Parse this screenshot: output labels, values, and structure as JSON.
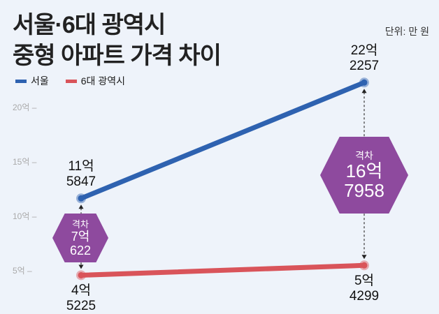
{
  "title": [
    "서울·6대 광역시",
    "중형 아파트 가격 차이"
  ],
  "unit": "단위: 만 원",
  "chart_data": {
    "type": "line",
    "legend_position": "top-left",
    "y_unit": "억 원",
    "ylim": [
      3,
      22.5
    ],
    "yticks": [
      {
        "value": 20,
        "label": "20억 –"
      },
      {
        "value": 15,
        "label": "15억 –"
      },
      {
        "value": 10,
        "label": "10억 –"
      },
      {
        "value": 5,
        "label": "5억 –"
      }
    ],
    "series": [
      {
        "name": "서울",
        "color": "#2e62b0",
        "values": [
          11.5847,
          22.2257
        ],
        "labels": [
          [
            "11억",
            "5847"
          ],
          [
            "22억",
            "2257"
          ]
        ]
      },
      {
        "name": "6대 광역시",
        "color": "#d9545a",
        "values": [
          4.5225,
          5.4299
        ],
        "labels": [
          [
            "4억",
            "5225"
          ],
          [
            "5억",
            "4299"
          ]
        ]
      }
    ],
    "gaps": [
      {
        "caption": "격차",
        "line1": "7억",
        "line2": "622"
      },
      {
        "caption": "격차",
        "line1": "16억",
        "line2": "7958"
      }
    ],
    "gap_color": "#8e4a9e"
  }
}
